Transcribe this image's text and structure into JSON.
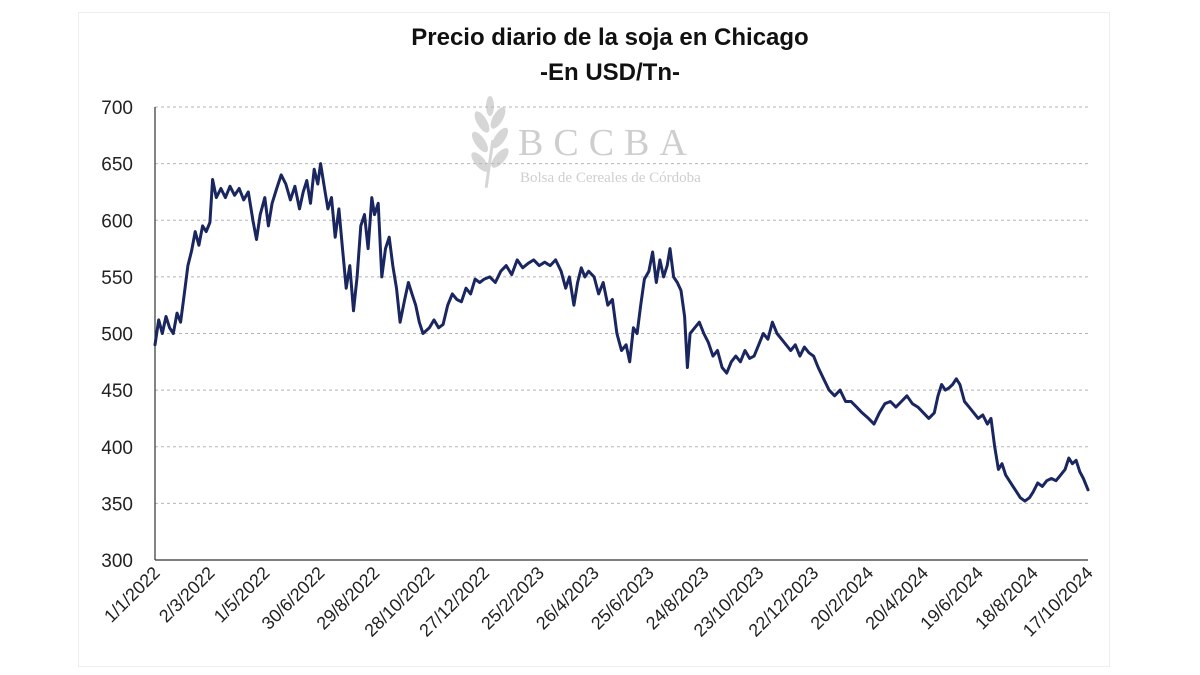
{
  "chart_data": {
    "type": "line",
    "title": "Precio diario de la soja en Chicago",
    "subtitle": "-En USD/Tn-",
    "xlabel": "",
    "ylabel": "",
    "ylim": [
      300,
      700
    ],
    "yticks": [
      300,
      350,
      400,
      450,
      500,
      550,
      600,
      650,
      700
    ],
    "xlim": [
      "2022-01-01",
      "2024-10-17"
    ],
    "xtick_labels": [
      "1/1/2022",
      "2/3/2022",
      "1/5/2022",
      "30/6/2022",
      "29/8/2022",
      "28/10/2022",
      "27/12/2022",
      "25/2/2023",
      "26/4/2023",
      "25/6/2023",
      "24/8/2023",
      "23/10/2023",
      "22/12/2023",
      "20/2/2024",
      "20/4/2024",
      "19/6/2024",
      "18/8/2024",
      "17/10/2024"
    ],
    "xtick_dates": [
      "2022-01-01",
      "2022-03-02",
      "2022-05-01",
      "2022-06-30",
      "2022-08-29",
      "2022-10-28",
      "2022-12-27",
      "2023-02-25",
      "2023-04-26",
      "2023-06-25",
      "2023-08-24",
      "2023-10-23",
      "2023-12-22",
      "2024-02-20",
      "2024-04-20",
      "2024-06-19",
      "2024-08-18",
      "2024-10-17"
    ],
    "grid": "horizontal-dashed",
    "legend": "none",
    "line_color": "#1a2660",
    "series": [
      {
        "points": [
          [
            "2022-01-01",
            490
          ],
          [
            "2022-01-05",
            512
          ],
          [
            "2022-01-09",
            500
          ],
          [
            "2022-01-13",
            515
          ],
          [
            "2022-01-17",
            505
          ],
          [
            "2022-01-21",
            500
          ],
          [
            "2022-01-25",
            518
          ],
          [
            "2022-01-29",
            510
          ],
          [
            "2022-02-02",
            535
          ],
          [
            "2022-02-06",
            560
          ],
          [
            "2022-02-10",
            573
          ],
          [
            "2022-02-14",
            590
          ],
          [
            "2022-02-18",
            578
          ],
          [
            "2022-02-22",
            595
          ],
          [
            "2022-02-26",
            590
          ],
          [
            "2022-03-02",
            598
          ],
          [
            "2022-03-05",
            636
          ],
          [
            "2022-03-09",
            620
          ],
          [
            "2022-03-14",
            628
          ],
          [
            "2022-03-19",
            620
          ],
          [
            "2022-03-24",
            630
          ],
          [
            "2022-03-29",
            622
          ],
          [
            "2022-04-03",
            628
          ],
          [
            "2022-04-08",
            618
          ],
          [
            "2022-04-13",
            625
          ],
          [
            "2022-04-18",
            600
          ],
          [
            "2022-04-22",
            583
          ],
          [
            "2022-04-26",
            605
          ],
          [
            "2022-05-01",
            620
          ],
          [
            "2022-05-05",
            595
          ],
          [
            "2022-05-09",
            615
          ],
          [
            "2022-05-14",
            628
          ],
          [
            "2022-05-19",
            640
          ],
          [
            "2022-05-24",
            632
          ],
          [
            "2022-05-29",
            618
          ],
          [
            "2022-06-03",
            630
          ],
          [
            "2022-06-08",
            610
          ],
          [
            "2022-06-12",
            625
          ],
          [
            "2022-06-16",
            635
          ],
          [
            "2022-06-20",
            615
          ],
          [
            "2022-06-24",
            645
          ],
          [
            "2022-06-28",
            632
          ],
          [
            "2022-07-01",
            650
          ],
          [
            "2022-07-05",
            630
          ],
          [
            "2022-07-09",
            610
          ],
          [
            "2022-07-13",
            620
          ],
          [
            "2022-07-17",
            585
          ],
          [
            "2022-07-21",
            610
          ],
          [
            "2022-07-25",
            575
          ],
          [
            "2022-07-29",
            540
          ],
          [
            "2022-08-02",
            560
          ],
          [
            "2022-08-06",
            520
          ],
          [
            "2022-08-10",
            550
          ],
          [
            "2022-08-14",
            595
          ],
          [
            "2022-08-18",
            605
          ],
          [
            "2022-08-22",
            575
          ],
          [
            "2022-08-26",
            620
          ],
          [
            "2022-08-29",
            605
          ],
          [
            "2022-09-02",
            615
          ],
          [
            "2022-09-06",
            550
          ],
          [
            "2022-09-10",
            575
          ],
          [
            "2022-09-14",
            585
          ],
          [
            "2022-09-18",
            560
          ],
          [
            "2022-09-22",
            540
          ],
          [
            "2022-09-26",
            510
          ],
          [
            "2022-10-01",
            530
          ],
          [
            "2022-10-05",
            545
          ],
          [
            "2022-10-09",
            535
          ],
          [
            "2022-10-13",
            525
          ],
          [
            "2022-10-17",
            510
          ],
          [
            "2022-10-21",
            500
          ],
          [
            "2022-10-28",
            505
          ],
          [
            "2022-11-02",
            512
          ],
          [
            "2022-11-07",
            505
          ],
          [
            "2022-11-12",
            508
          ],
          [
            "2022-11-17",
            525
          ],
          [
            "2022-11-22",
            535
          ],
          [
            "2022-11-27",
            530
          ],
          [
            "2022-12-02",
            528
          ],
          [
            "2022-12-07",
            540
          ],
          [
            "2022-12-12",
            535
          ],
          [
            "2022-12-17",
            548
          ],
          [
            "2022-12-22",
            545
          ],
          [
            "2022-12-27",
            548
          ],
          [
            "2023-01-02",
            550
          ],
          [
            "2023-01-08",
            545
          ],
          [
            "2023-01-14",
            555
          ],
          [
            "2023-01-20",
            560
          ],
          [
            "2023-01-26",
            552
          ],
          [
            "2023-02-01",
            565
          ],
          [
            "2023-02-07",
            558
          ],
          [
            "2023-02-13",
            562
          ],
          [
            "2023-02-19",
            565
          ],
          [
            "2023-02-25",
            560
          ],
          [
            "2023-03-03",
            563
          ],
          [
            "2023-03-09",
            560
          ],
          [
            "2023-03-15",
            565
          ],
          [
            "2023-03-21",
            555
          ],
          [
            "2023-03-26",
            540
          ],
          [
            "2023-03-30",
            550
          ],
          [
            "2023-04-04",
            525
          ],
          [
            "2023-04-08",
            545
          ],
          [
            "2023-04-12",
            558
          ],
          [
            "2023-04-16",
            550
          ],
          [
            "2023-04-20",
            555
          ],
          [
            "2023-04-26",
            550
          ],
          [
            "2023-05-01",
            535
          ],
          [
            "2023-05-06",
            545
          ],
          [
            "2023-05-11",
            525
          ],
          [
            "2023-05-16",
            530
          ],
          [
            "2023-05-21",
            500
          ],
          [
            "2023-05-26",
            485
          ],
          [
            "2023-05-31",
            490
          ],
          [
            "2023-06-04",
            475
          ],
          [
            "2023-06-08",
            505
          ],
          [
            "2023-06-12",
            500
          ],
          [
            "2023-06-16",
            525
          ],
          [
            "2023-06-20",
            548
          ],
          [
            "2023-06-25",
            555
          ],
          [
            "2023-06-29",
            572
          ],
          [
            "2023-07-03",
            545
          ],
          [
            "2023-07-07",
            565
          ],
          [
            "2023-07-11",
            550
          ],
          [
            "2023-07-15",
            560
          ],
          [
            "2023-07-18",
            575
          ],
          [
            "2023-07-22",
            550
          ],
          [
            "2023-07-26",
            545
          ],
          [
            "2023-07-30",
            538
          ],
          [
            "2023-08-03",
            515
          ],
          [
            "2023-08-06",
            470
          ],
          [
            "2023-08-09",
            500
          ],
          [
            "2023-08-14",
            505
          ],
          [
            "2023-08-19",
            510
          ],
          [
            "2023-08-24",
            500
          ],
          [
            "2023-08-29",
            492
          ],
          [
            "2023-09-03",
            480
          ],
          [
            "2023-09-08",
            485
          ],
          [
            "2023-09-13",
            470
          ],
          [
            "2023-09-18",
            465
          ],
          [
            "2023-09-23",
            475
          ],
          [
            "2023-09-28",
            480
          ],
          [
            "2023-10-03",
            475
          ],
          [
            "2023-10-08",
            485
          ],
          [
            "2023-10-13",
            478
          ],
          [
            "2023-10-18",
            480
          ],
          [
            "2023-10-23",
            490
          ],
          [
            "2023-10-28",
            500
          ],
          [
            "2023-11-02",
            495
          ],
          [
            "2023-11-07",
            510
          ],
          [
            "2023-11-12",
            500
          ],
          [
            "2023-11-17",
            495
          ],
          [
            "2023-11-22",
            490
          ],
          [
            "2023-11-27",
            485
          ],
          [
            "2023-12-02",
            490
          ],
          [
            "2023-12-07",
            480
          ],
          [
            "2023-12-12",
            488
          ],
          [
            "2023-12-17",
            483
          ],
          [
            "2023-12-22",
            480
          ],
          [
            "2023-12-27",
            470
          ],
          [
            "2024-01-02",
            460
          ],
          [
            "2024-01-08",
            450
          ],
          [
            "2024-01-14",
            445
          ],
          [
            "2024-01-20",
            450
          ],
          [
            "2024-01-26",
            440
          ],
          [
            "2024-02-01",
            440
          ],
          [
            "2024-02-07",
            435
          ],
          [
            "2024-02-13",
            430
          ],
          [
            "2024-02-20",
            425
          ],
          [
            "2024-02-26",
            420
          ],
          [
            "2024-03-03",
            430
          ],
          [
            "2024-03-09",
            438
          ],
          [
            "2024-03-15",
            440
          ],
          [
            "2024-03-21",
            435
          ],
          [
            "2024-03-27",
            440
          ],
          [
            "2024-04-02",
            445
          ],
          [
            "2024-04-08",
            438
          ],
          [
            "2024-04-14",
            435
          ],
          [
            "2024-04-20",
            430
          ],
          [
            "2024-04-26",
            425
          ],
          [
            "2024-05-02",
            430
          ],
          [
            "2024-05-06",
            445
          ],
          [
            "2024-05-10",
            455
          ],
          [
            "2024-05-14",
            450
          ],
          [
            "2024-05-18",
            452
          ],
          [
            "2024-05-22",
            455
          ],
          [
            "2024-05-26",
            460
          ],
          [
            "2024-05-30",
            455
          ],
          [
            "2024-06-04",
            440
          ],
          [
            "2024-06-09",
            435
          ],
          [
            "2024-06-14",
            430
          ],
          [
            "2024-06-19",
            425
          ],
          [
            "2024-06-24",
            428
          ],
          [
            "2024-06-29",
            420
          ],
          [
            "2024-07-03",
            425
          ],
          [
            "2024-07-07",
            400
          ],
          [
            "2024-07-11",
            380
          ],
          [
            "2024-07-15",
            385
          ],
          [
            "2024-07-19",
            375
          ],
          [
            "2024-07-23",
            370
          ],
          [
            "2024-07-27",
            365
          ],
          [
            "2024-07-31",
            360
          ],
          [
            "2024-08-04",
            355
          ],
          [
            "2024-08-09",
            352
          ],
          [
            "2024-08-14",
            355
          ],
          [
            "2024-08-18",
            360
          ],
          [
            "2024-08-23",
            368
          ],
          [
            "2024-08-28",
            365
          ],
          [
            "2024-09-02",
            370
          ],
          [
            "2024-09-07",
            372
          ],
          [
            "2024-09-12",
            370
          ],
          [
            "2024-09-17",
            375
          ],
          [
            "2024-09-22",
            380
          ],
          [
            "2024-09-26",
            390
          ],
          [
            "2024-09-30",
            385
          ],
          [
            "2024-10-04",
            388
          ],
          [
            "2024-10-08",
            378
          ],
          [
            "2024-10-12",
            372
          ],
          [
            "2024-10-17",
            362
          ]
        ]
      }
    ]
  },
  "watermark": {
    "logo_text": "BCCBA",
    "org_name": "Bolsa de Cereales de Córdoba"
  }
}
